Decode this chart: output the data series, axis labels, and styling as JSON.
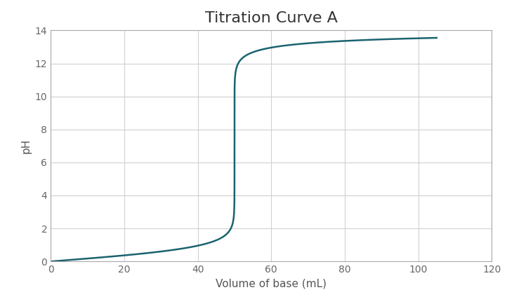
{
  "title": "Titration Curve A",
  "xlabel": "Volume of base (mL)",
  "ylabel": "pH",
  "xlim": [
    0,
    120
  ],
  "ylim": [
    0,
    14
  ],
  "xticks": [
    0,
    20,
    40,
    60,
    80,
    100,
    120
  ],
  "yticks": [
    0,
    2,
    4,
    6,
    8,
    10,
    12,
    14
  ],
  "line_color": "#1a6370",
  "line_width": 1.8,
  "background_color": "#ffffff",
  "plot_bg_color": "#ffffff",
  "grid_color": "#d0d0d0",
  "title_fontsize": 16,
  "label_fontsize": 11,
  "tick_fontsize": 10,
  "equiv_volume": 50.0,
  "acid_conc": 1.0,
  "base_conc": 1.0,
  "acid_volume": 50.0
}
